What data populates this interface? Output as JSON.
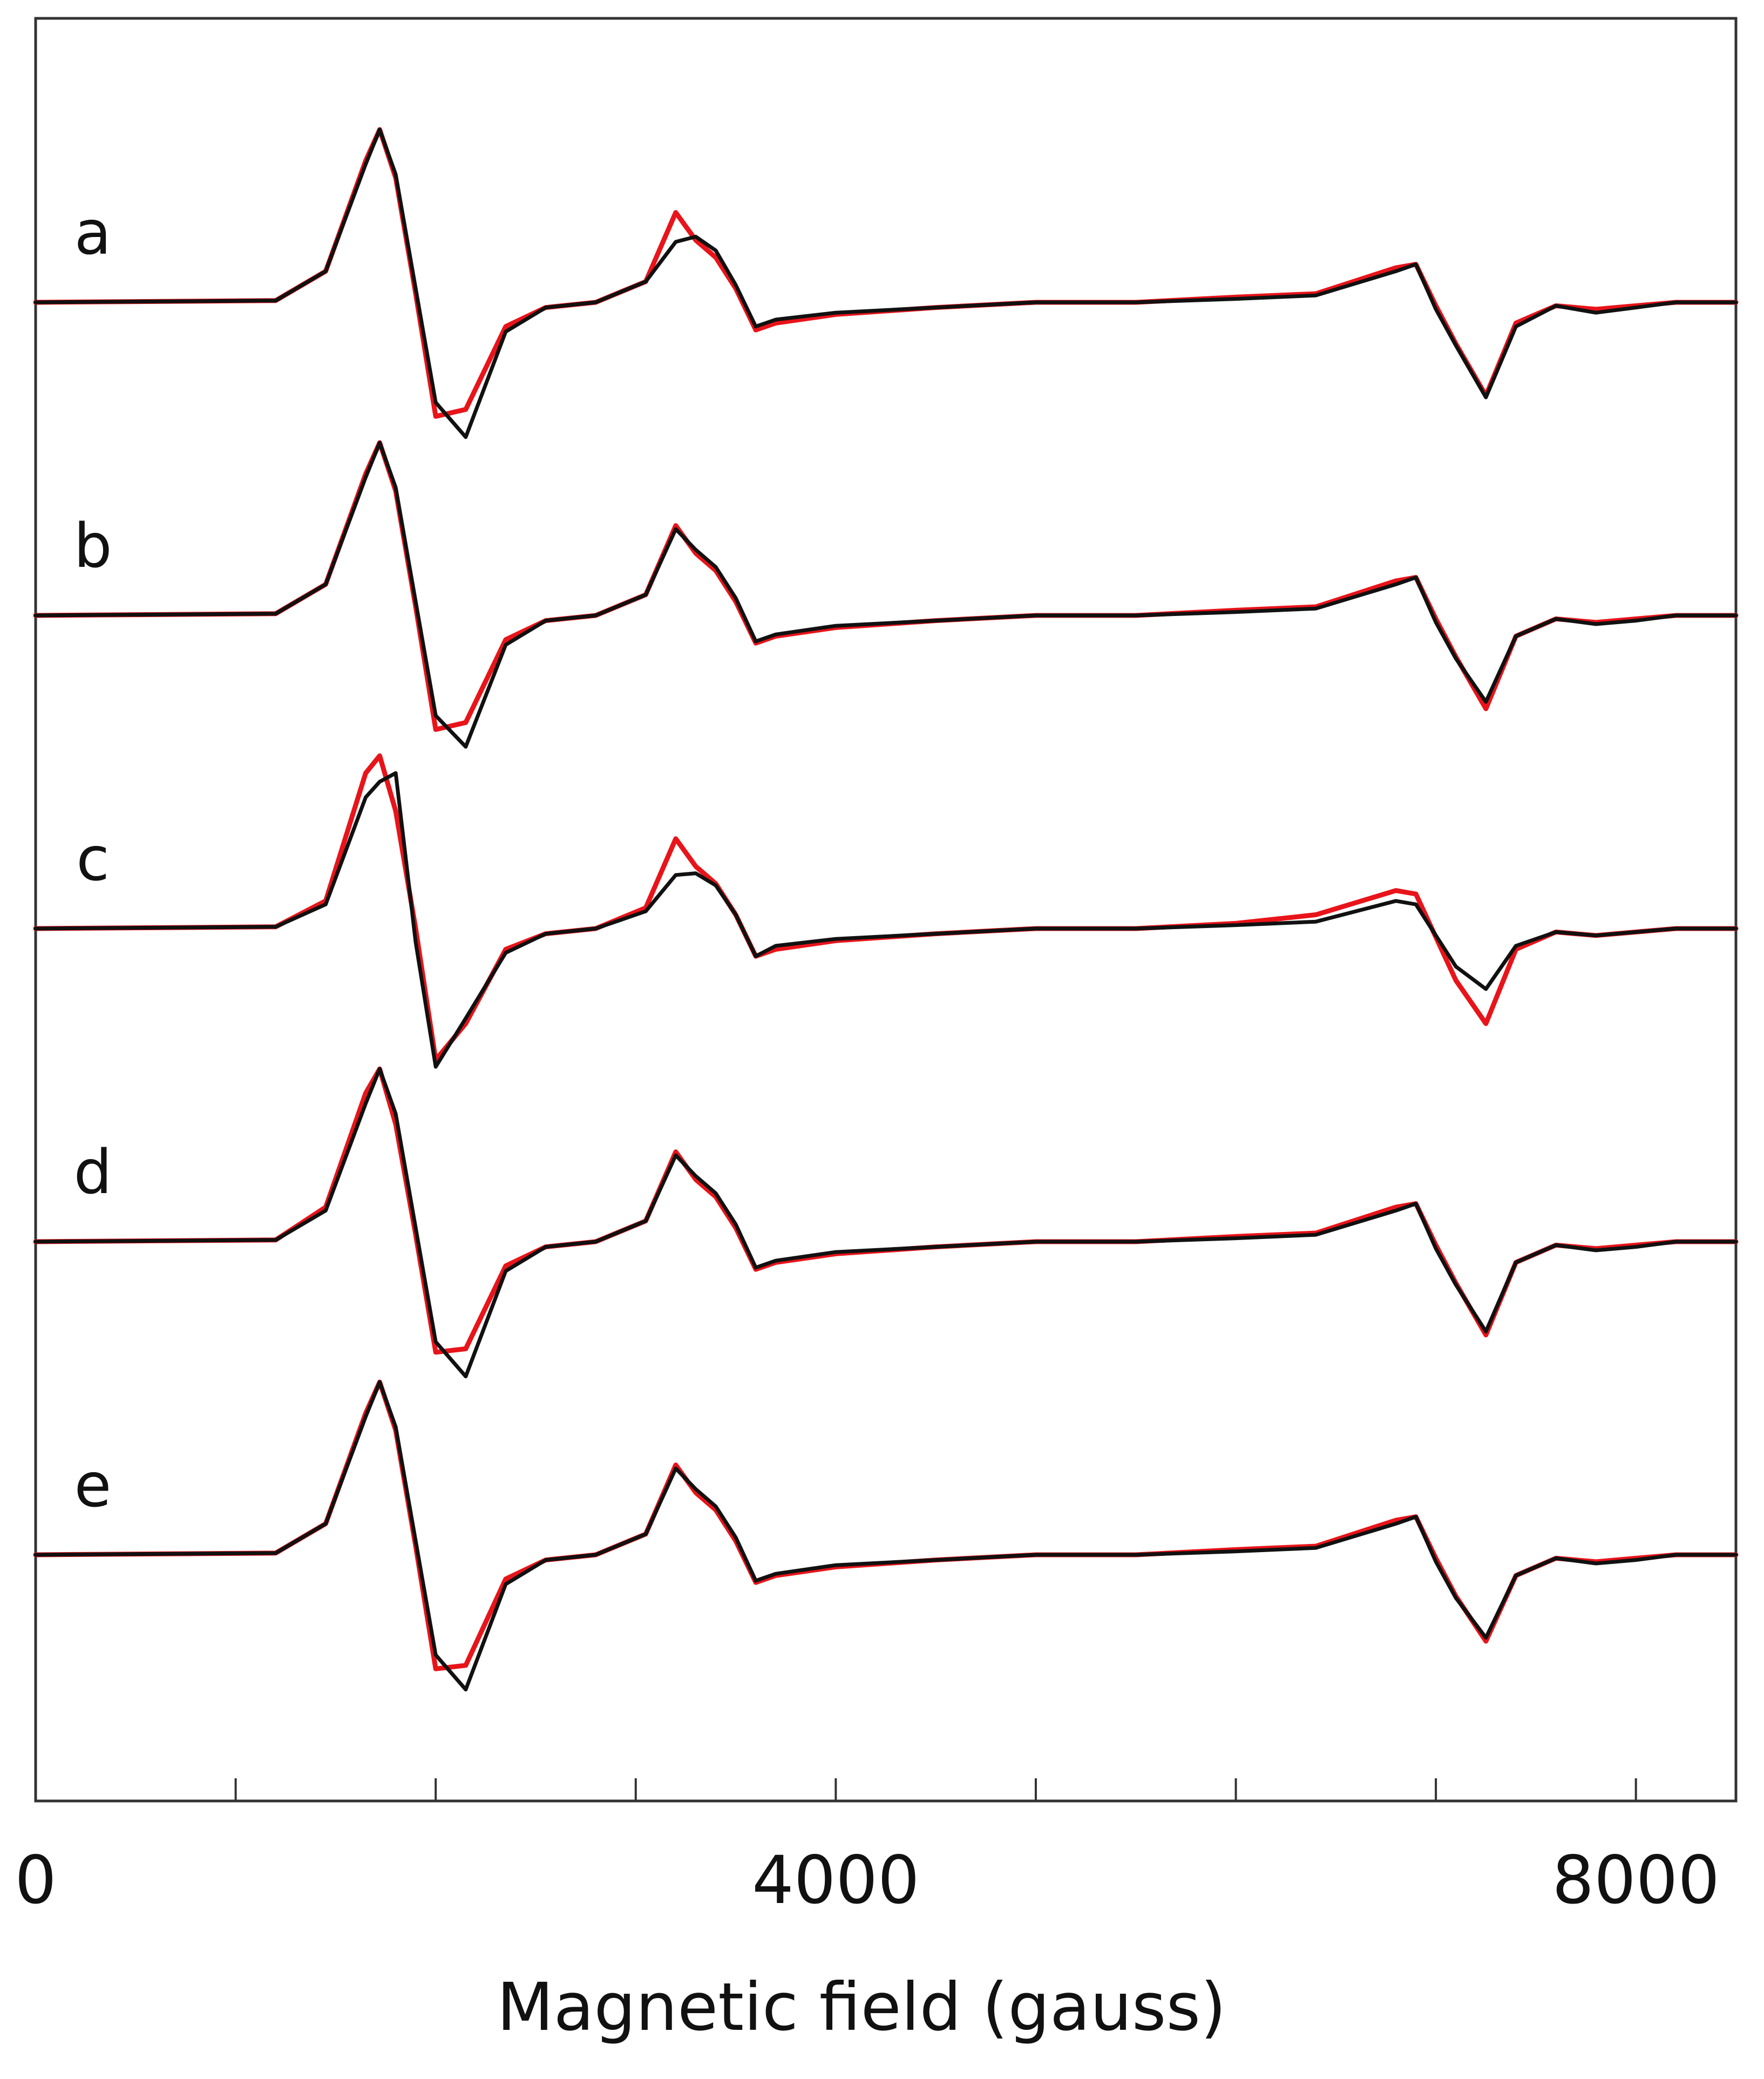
{
  "chart_data": {
    "type": "line",
    "title": "",
    "xlabel": "Magnetic field (gauss)",
    "ylabel": "",
    "xlim": [
      0,
      8500
    ],
    "x_ticks": [
      0,
      1000,
      2000,
      3000,
      4000,
      5000,
      6000,
      7000,
      8000
    ],
    "x_tick_labels": [
      {
        "value": 0,
        "label": "0"
      },
      {
        "value": 4000,
        "label": "4000"
      },
      {
        "value": 8000,
        "label": "8000"
      }
    ],
    "grid": false,
    "legend": "none",
    "colors": {
      "experimental": "#e8141a",
      "simulated": "#111111",
      "axis": "#333333"
    },
    "x_field": [
      0,
      1200,
      1450,
      1650,
      1720,
      1800,
      1900,
      2000,
      2150,
      2350,
      2550,
      2800,
      3050,
      3200,
      3300,
      3400,
      3500,
      3600,
      3700,
      4000,
      4500,
      5000,
      5500,
      6000,
      6400,
      6800,
      6900,
      7000,
      7100,
      7250,
      7400,
      7600,
      7800,
      8000,
      8200,
      8500
    ],
    "traces": [
      {
        "label": "a",
        "experimental": [
          0,
          0.01,
          0.18,
          0.82,
          1.0,
          0.72,
          0.05,
          -0.66,
          -0.62,
          -0.14,
          -0.03,
          0.0,
          0.12,
          0.52,
          0.36,
          0.26,
          0.08,
          -0.16,
          -0.12,
          -0.07,
          -0.03,
          0.0,
          0.0,
          0.03,
          0.05,
          0.2,
          0.22,
          -0.02,
          -0.24,
          -0.54,
          -0.12,
          -0.02,
          -0.04,
          -0.02,
          0.0,
          0.0
        ],
        "simulated": [
          0,
          0.01,
          0.18,
          0.8,
          1.0,
          0.74,
          0.08,
          -0.58,
          -0.78,
          -0.17,
          -0.03,
          0.0,
          0.12,
          0.35,
          0.38,
          0.3,
          0.1,
          -0.14,
          -0.1,
          -0.06,
          -0.03,
          0.0,
          0.0,
          0.02,
          0.04,
          0.18,
          0.22,
          -0.04,
          -0.25,
          -0.55,
          -0.14,
          -0.02,
          -0.06,
          -0.03,
          0.0,
          0.0
        ]
      },
      {
        "label": "b",
        "experimental": [
          0,
          0.01,
          0.18,
          0.82,
          1.0,
          0.72,
          0.05,
          -0.66,
          -0.62,
          -0.14,
          -0.03,
          0.0,
          0.12,
          0.52,
          0.36,
          0.26,
          0.08,
          -0.16,
          -0.12,
          -0.07,
          -0.03,
          0.0,
          0.0,
          0.03,
          0.05,
          0.2,
          0.22,
          -0.02,
          -0.24,
          -0.54,
          -0.12,
          -0.02,
          -0.04,
          -0.02,
          0.0,
          0.0
        ],
        "simulated": [
          0,
          0.01,
          0.18,
          0.8,
          1.0,
          0.74,
          0.08,
          -0.58,
          -0.76,
          -0.17,
          -0.03,
          0.0,
          0.12,
          0.5,
          0.38,
          0.28,
          0.1,
          -0.15,
          -0.11,
          -0.06,
          -0.03,
          0.0,
          0.0,
          0.02,
          0.04,
          0.18,
          0.22,
          -0.04,
          -0.25,
          -0.5,
          -0.12,
          -0.02,
          -0.05,
          -0.03,
          0.0,
          0.0
        ]
      },
      {
        "label": "c",
        "experimental": [
          0,
          0.01,
          0.16,
          0.9,
          1.0,
          0.68,
          0.0,
          -0.76,
          -0.55,
          -0.12,
          -0.03,
          0.0,
          0.12,
          0.52,
          0.36,
          0.26,
          0.08,
          -0.16,
          -0.12,
          -0.07,
          -0.03,
          0.0,
          0.0,
          0.03,
          0.08,
          0.22,
          0.2,
          -0.05,
          -0.3,
          -0.55,
          -0.12,
          -0.02,
          -0.04,
          -0.02,
          0.0,
          0.0
        ],
        "simulated": [
          0,
          0.01,
          0.14,
          0.76,
          0.85,
          0.9,
          -0.08,
          -0.8,
          -0.52,
          -0.14,
          -0.03,
          0.0,
          0.1,
          0.31,
          0.32,
          0.25,
          0.08,
          -0.16,
          -0.1,
          -0.06,
          -0.03,
          0.0,
          0.0,
          0.02,
          0.04,
          0.16,
          0.14,
          -0.04,
          -0.22,
          -0.35,
          -0.1,
          -0.02,
          -0.04,
          -0.02,
          0.0,
          0.0
        ]
      },
      {
        "label": "d",
        "experimental": [
          0,
          0.01,
          0.2,
          0.86,
          1.0,
          0.68,
          0.04,
          -0.64,
          -0.62,
          -0.14,
          -0.03,
          0.0,
          0.12,
          0.52,
          0.36,
          0.26,
          0.08,
          -0.16,
          -0.12,
          -0.07,
          -0.03,
          0.0,
          0.0,
          0.03,
          0.05,
          0.2,
          0.22,
          -0.02,
          -0.24,
          -0.54,
          -0.12,
          -0.02,
          -0.04,
          -0.02,
          0.0,
          0.0
        ],
        "simulated": [
          0,
          0.01,
          0.18,
          0.8,
          1.0,
          0.74,
          0.08,
          -0.58,
          -0.78,
          -0.17,
          -0.03,
          0.0,
          0.12,
          0.5,
          0.38,
          0.28,
          0.1,
          -0.15,
          -0.11,
          -0.06,
          -0.03,
          0.0,
          0.0,
          0.02,
          0.04,
          0.18,
          0.22,
          -0.04,
          -0.25,
          -0.52,
          -0.12,
          -0.02,
          -0.05,
          -0.03,
          0.0,
          0.0
        ]
      },
      {
        "label": "e",
        "experimental": [
          0,
          0.01,
          0.18,
          0.82,
          1.0,
          0.72,
          0.05,
          -0.66,
          -0.64,
          -0.14,
          -0.03,
          0.0,
          0.12,
          0.52,
          0.36,
          0.26,
          0.08,
          -0.16,
          -0.12,
          -0.07,
          -0.03,
          0.0,
          0.0,
          0.03,
          0.05,
          0.2,
          0.22,
          -0.02,
          -0.24,
          -0.5,
          -0.12,
          -0.02,
          -0.04,
          -0.02,
          0.0,
          0.0
        ],
        "simulated": [
          0,
          0.01,
          0.18,
          0.8,
          1.0,
          0.74,
          0.08,
          -0.58,
          -0.78,
          -0.17,
          -0.03,
          0.0,
          0.12,
          0.5,
          0.38,
          0.28,
          0.1,
          -0.15,
          -0.11,
          -0.06,
          -0.03,
          0.0,
          0.0,
          0.02,
          0.04,
          0.18,
          0.22,
          -0.04,
          -0.25,
          -0.48,
          -0.12,
          -0.02,
          -0.05,
          -0.03,
          0.0,
          0.0
        ]
      }
    ]
  }
}
